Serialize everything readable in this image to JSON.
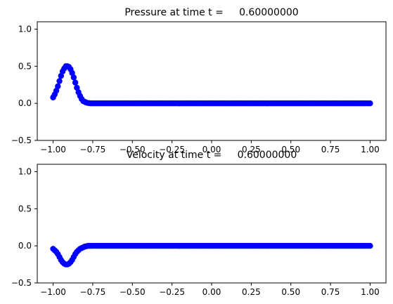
{
  "chart_data": [
    {
      "type": "scatter",
      "title": "Pressure at time t =     0.60000000",
      "xlim": [
        -1.1,
        1.1
      ],
      "ylim": [
        -0.5,
        1.1
      ],
      "xticks": [
        -1.0,
        -0.75,
        -0.5,
        -0.25,
        0.0,
        0.25,
        0.5,
        0.75,
        1.0
      ],
      "xtick_labels": [
        "−1.00",
        "−0.75",
        "−0.50",
        "−0.25",
        "0.00",
        "0.25",
        "0.50",
        "0.75",
        "1.00"
      ],
      "yticks": [
        -0.5,
        0.0,
        0.5,
        1.0
      ],
      "ytick_labels": [
        "−0.5",
        "0.0",
        "0.5",
        "1.0"
      ],
      "marker_color": "#0000ff",
      "marker": "circle",
      "grid": false,
      "series": [
        {
          "x": [
            -1.0,
            -0.99,
            -0.98,
            -0.97,
            -0.96,
            -0.95,
            -0.94,
            -0.93,
            -0.92,
            -0.91,
            -0.9,
            -0.89,
            -0.88,
            -0.87,
            -0.86,
            -0.85,
            -0.84,
            -0.83,
            -0.82,
            -0.81,
            -0.8,
            -0.79,
            -0.78,
            -0.77,
            -0.76,
            -0.75,
            -0.7,
            -0.6,
            -0.5,
            -0.4,
            -0.3,
            -0.2,
            -0.1,
            0.0,
            0.1,
            0.2,
            0.3,
            0.4,
            0.5,
            0.6,
            0.7,
            0.8,
            0.9,
            1.0
          ],
          "y": [
            0.08,
            0.12,
            0.17,
            0.23,
            0.3,
            0.37,
            0.43,
            0.47,
            0.5,
            0.5,
            0.49,
            0.46,
            0.41,
            0.35,
            0.28,
            0.21,
            0.15,
            0.1,
            0.06,
            0.03,
            0.02,
            0.01,
            0.005,
            0.002,
            0.0,
            0.0,
            0.0,
            0.0,
            0.0,
            0.0,
            0.0,
            0.0,
            0.0,
            0.0,
            0.0,
            0.0,
            0.0,
            0.0,
            0.0,
            0.0,
            0.0,
            0.0,
            0.0,
            0.0
          ]
        }
      ]
    },
    {
      "type": "scatter",
      "title": "Velocity at time t =     0.60000000",
      "xlim": [
        -1.1,
        1.1
      ],
      "ylim": [
        -0.5,
        1.1
      ],
      "xticks": [
        -1.0,
        -0.75,
        -0.5,
        -0.25,
        0.0,
        0.25,
        0.5,
        0.75,
        1.0
      ],
      "xtick_labels": [
        "−1.00",
        "−0.75",
        "−0.50",
        "−0.25",
        "0.00",
        "0.25",
        "0.50",
        "0.75",
        "1.00"
      ],
      "yticks": [
        -0.5,
        0.0,
        0.5,
        1.0
      ],
      "ytick_labels": [
        "−0.5",
        "0.0",
        "0.5",
        "1.0"
      ],
      "marker_color": "#0000ff",
      "marker": "circle",
      "grid": false,
      "series": [
        {
          "x": [
            -1.0,
            -0.99,
            -0.98,
            -0.97,
            -0.96,
            -0.95,
            -0.94,
            -0.93,
            -0.92,
            -0.91,
            -0.9,
            -0.89,
            -0.88,
            -0.87,
            -0.86,
            -0.85,
            -0.84,
            -0.83,
            -0.82,
            -0.81,
            -0.8,
            -0.79,
            -0.78,
            -0.77,
            -0.76,
            -0.75,
            -0.7,
            -0.6,
            -0.5,
            -0.4,
            -0.3,
            -0.2,
            -0.1,
            0.0,
            0.1,
            0.2,
            0.3,
            0.4,
            0.5,
            0.6,
            0.7,
            0.8,
            0.9,
            1.0
          ],
          "y": [
            -0.04,
            -0.06,
            -0.08,
            -0.11,
            -0.15,
            -0.19,
            -0.22,
            -0.24,
            -0.25,
            -0.25,
            -0.24,
            -0.22,
            -0.19,
            -0.15,
            -0.11,
            -0.08,
            -0.06,
            -0.04,
            -0.03,
            -0.02,
            -0.01,
            -0.005,
            0.0,
            0.0,
            0.0,
            0.0,
            0.0,
            0.0,
            0.0,
            0.0,
            0.0,
            0.0,
            0.0,
            0.0,
            0.0,
            0.0,
            0.0,
            0.0,
            0.0,
            0.0,
            0.0,
            0.0,
            0.0,
            0.0
          ]
        }
      ]
    }
  ]
}
